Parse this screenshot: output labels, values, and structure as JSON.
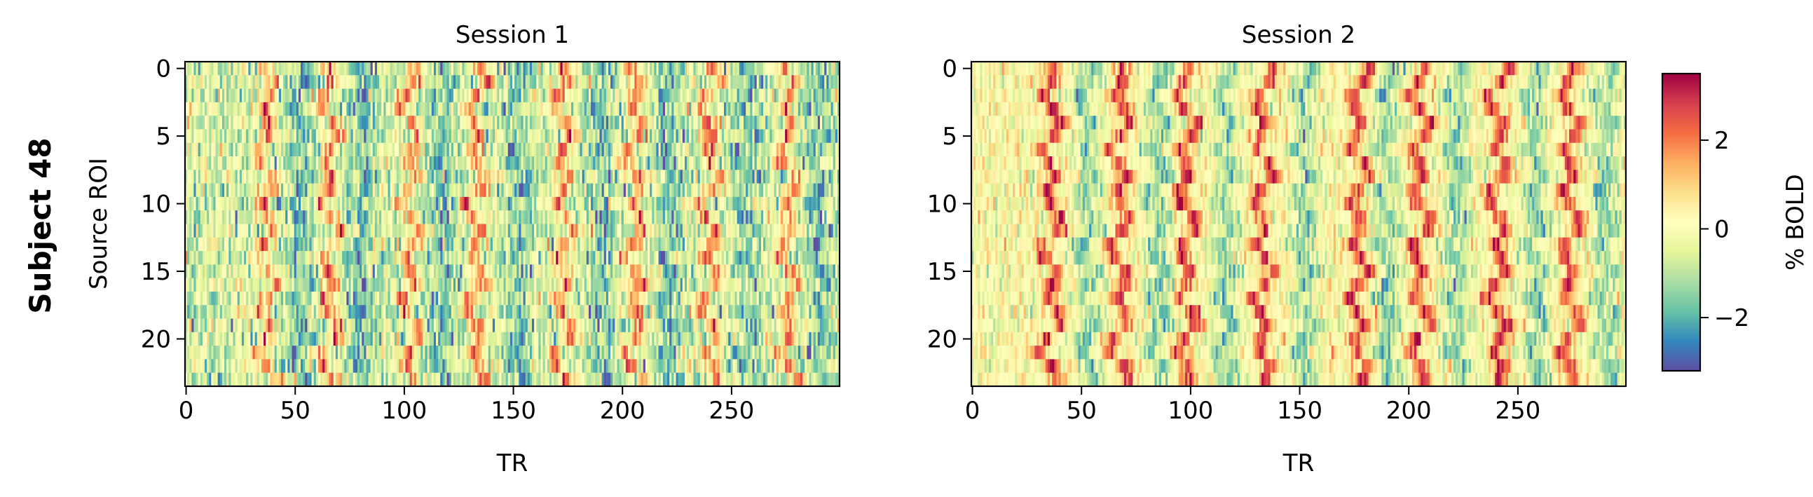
{
  "figure": {
    "row_label": "Subject 48"
  },
  "chart_data": [
    {
      "type": "heatmap",
      "title": "Session 1",
      "xlabel": "TR",
      "ylabel": "Source ROI",
      "xlim": [
        0,
        299
      ],
      "ylim": [
        23.5,
        -0.5
      ],
      "n_rows": 24,
      "n_cols": 300,
      "x_ticks": [
        0,
        50,
        100,
        150,
        200,
        250
      ],
      "y_ticks": [
        0,
        5,
        10,
        15,
        20
      ],
      "peak_trs": [
        37,
        66,
        103,
        133,
        173,
        206,
        240,
        276
      ],
      "trough_trs": [
        52,
        80,
        117,
        152,
        190,
        222,
        257,
        290
      ],
      "baseline_bold": -0.6,
      "noise_sd": 1.0,
      "peak_amplitude": 2.6,
      "trough_amplitude": -1.2
    },
    {
      "type": "heatmap",
      "title": "Session 2",
      "xlabel": "TR",
      "ylabel": "",
      "xlim": [
        0,
        299
      ],
      "ylim": [
        23.5,
        -0.5
      ],
      "n_rows": 24,
      "n_cols": 300,
      "x_ticks": [
        0,
        50,
        100,
        150,
        200,
        250
      ],
      "y_ticks": [
        0,
        5,
        10,
        15,
        20
      ],
      "peak_trs": [
        36,
        68,
        98,
        133,
        177,
        205,
        241,
        274
      ],
      "trough_trs": [
        53,
        85,
        116,
        152,
        190,
        222,
        258,
        290
      ],
      "baseline_bold": 0.1,
      "noise_sd": 0.75,
      "peak_amplitude": 2.7,
      "trough_amplitude": -1.6
    }
  ],
  "colorbar": {
    "label": "% BOLD",
    "colormap": "Spectral_r",
    "vmin": -3.2,
    "vmax": 3.5,
    "ticks": [
      -2,
      0,
      2
    ],
    "tick_labels": [
      "−2",
      "0",
      "2"
    ]
  }
}
